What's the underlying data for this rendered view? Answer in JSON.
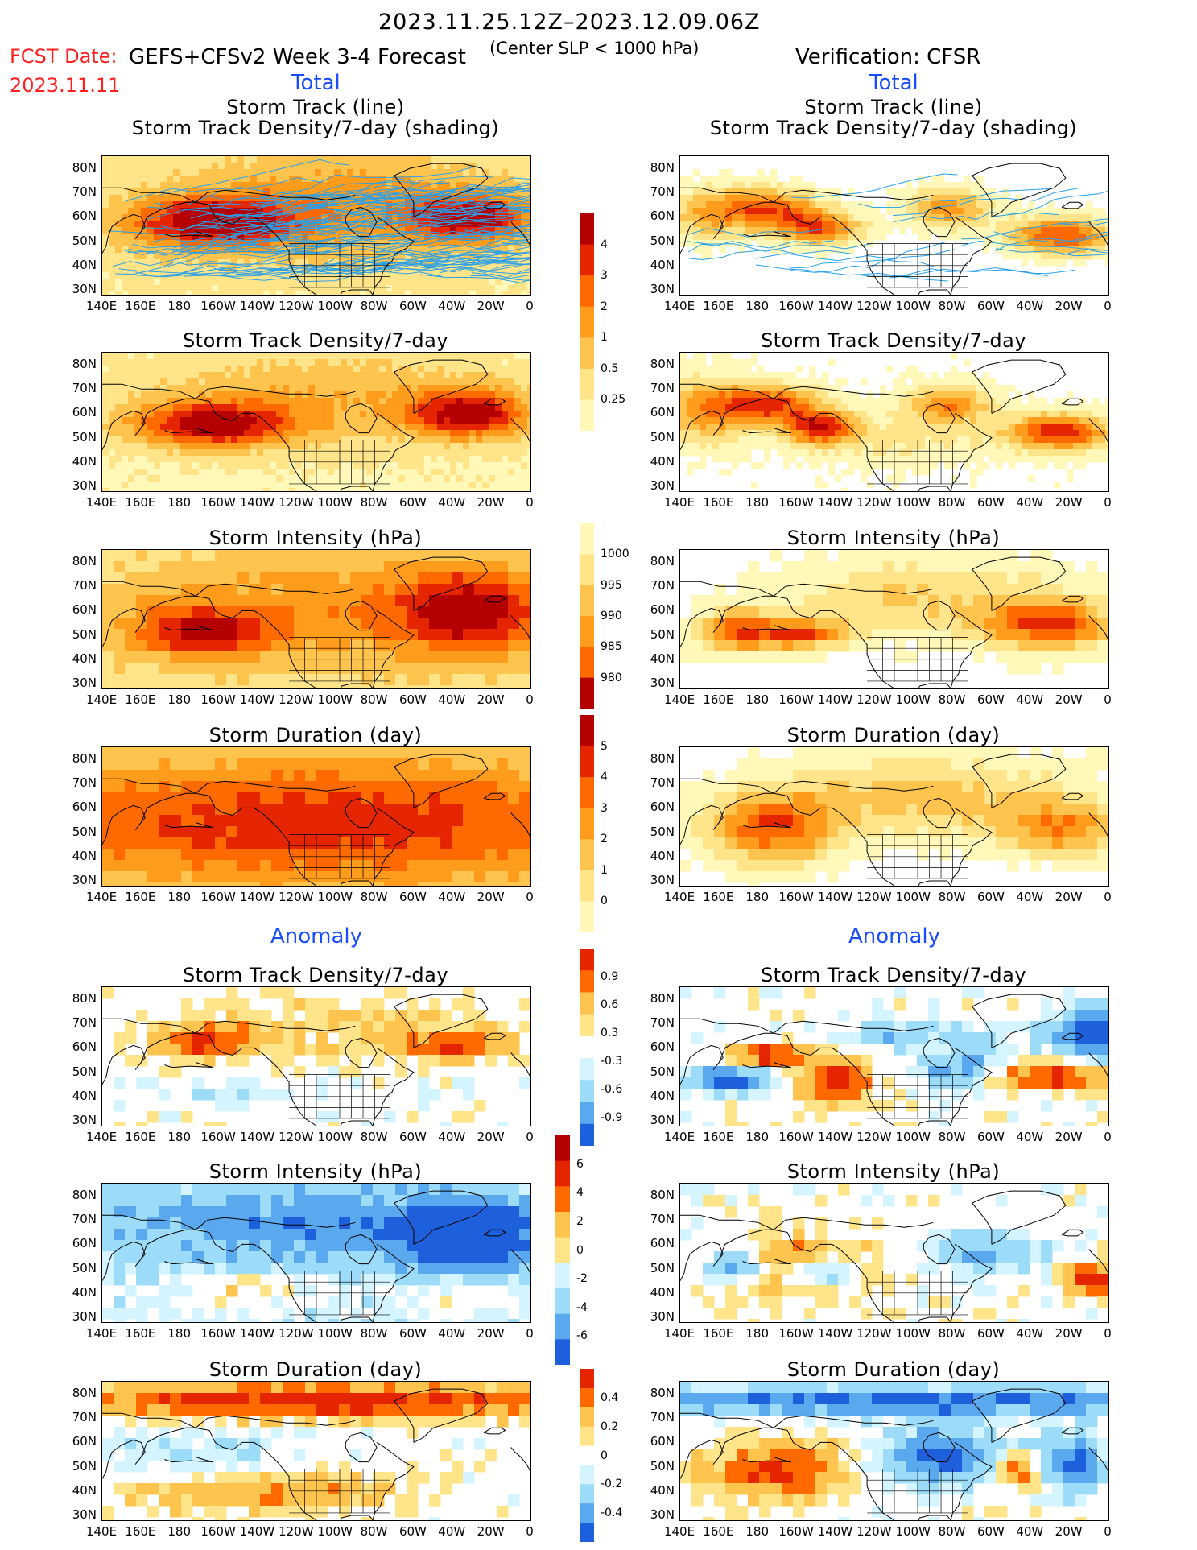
{
  "header": {
    "date_range": "2023.11.25.12Z–2023.12.09.06Z",
    "subtitle": "(Center SLP < 1000 hPa)",
    "fcst_label": "FCST Date:",
    "fcst_date": "2023.11.11",
    "left_title": "GEFS+CFSv2 Week 3-4 Forecast",
    "right_title": "Verification: CFSR",
    "total_label": "Total",
    "anomaly_label": "Anomaly"
  },
  "colors": {
    "warm": [
      "#fff8b8",
      "#ffe48a",
      "#ffc44e",
      "#ff9c1c",
      "#ff6a00",
      "#e52400",
      "#b40000"
    ],
    "cool": [
      "#d4f4ff",
      "#9cdcf8",
      "#5aa8ee",
      "#1e5fdc"
    ],
    "track_line": "#2aa0e8"
  },
  "panel_titles": {
    "track_line": "Storm Track (line)",
    "track_density_shading": "Storm Track Density/7-day (shading)",
    "track_density": "Storm Track Density/7-day",
    "intensity": "Storm Intensity (hPa)",
    "duration": "Storm Duration (day)"
  },
  "axes": {
    "lat_labels": [
      "80N",
      "70N",
      "60N",
      "50N",
      "40N",
      "30N"
    ],
    "lon_labels": [
      "140E",
      "160E",
      "180",
      "160W",
      "140W",
      "120W",
      "100W",
      "80W",
      "60W",
      "40W",
      "20W",
      "0"
    ]
  },
  "colorbars": {
    "density": [
      "4",
      "3",
      "2",
      "1",
      "0.5",
      "0.25"
    ],
    "intensity": [
      "1000",
      "995",
      "990",
      "985",
      "980"
    ],
    "duration": [
      "5",
      "4",
      "3",
      "2",
      "1",
      "0"
    ],
    "anom_density": [
      "0.9",
      "0.6",
      "0.3",
      "-0.3",
      "-0.6",
      "-0.9"
    ],
    "anom_intensity": [
      "6",
      "4",
      "2",
      "0",
      "-2",
      "-4",
      "-6"
    ],
    "anom_duration": [
      "0.4",
      "0.2",
      "0",
      "-0.2",
      "-0.4"
    ]
  },
  "chart_data": {
    "type": "heatmap",
    "x_range": [
      "140E",
      "0"
    ],
    "y_range": [
      "30N",
      "80N"
    ],
    "columns": [
      "GEFS+CFSv2 Week 3-4 Forecast",
      "Verification: CFSR"
    ],
    "rows": [
      "Storm Track (line) / Storm Track Density/7-day (shading)",
      "Storm Track Density/7-day",
      "Storm Intensity (hPa)",
      "Storm Duration (day)",
      "Anomaly Storm Track Density/7-day",
      "Anomaly Storm Intensity (hPa)",
      "Anomaly Storm Duration (day)"
    ]
  }
}
